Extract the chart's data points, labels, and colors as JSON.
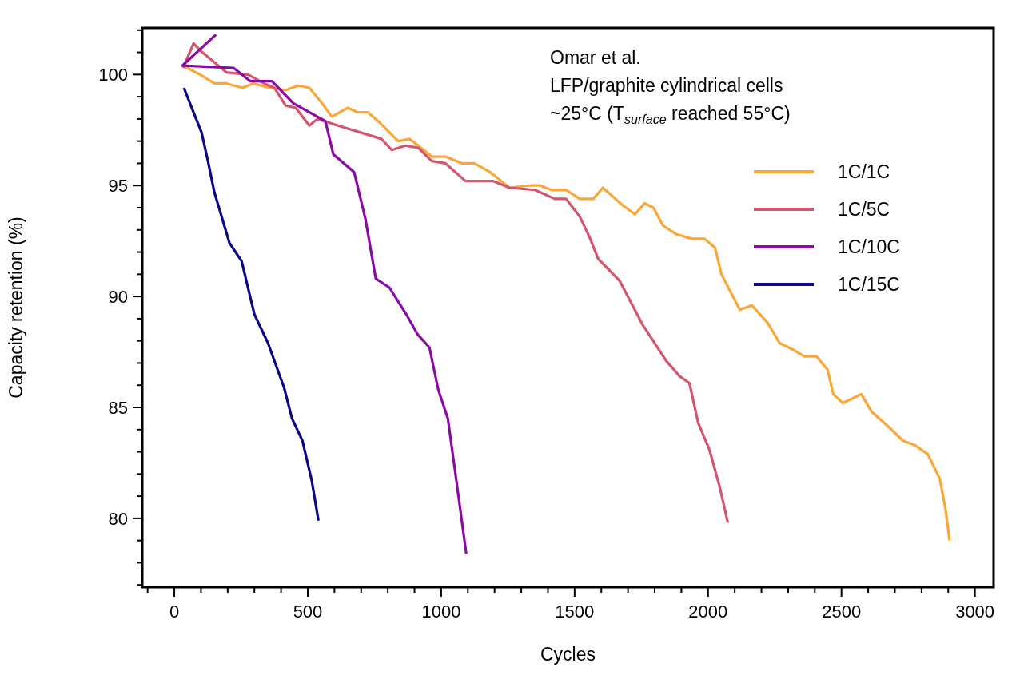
{
  "chart_data": {
    "type": "line",
    "xlabel": "Cycles",
    "ylabel": "Capacity retention (%)",
    "annotations": [
      "Omar et al.",
      "LFP/graphite cylindrical cells",
      "~25°C (T$_{surface}$ reached 55°C)"
    ],
    "xlim": [
      -120,
      3070
    ],
    "ylim": [
      76.9,
      102.1
    ],
    "xticks": [
      {
        "value": -100,
        "label": null
      },
      0,
      {
        "value": 100,
        "label": null
      },
      {
        "value": 200,
        "label": null
      },
      {
        "value": 300,
        "label": null
      },
      {
        "value": 400,
        "label": null
      },
      500,
      {
        "value": 600,
        "label": null
      },
      {
        "value": 700,
        "label": null
      },
      {
        "value": 800,
        "label": null
      },
      {
        "value": 900,
        "label": null
      },
      1000,
      {
        "value": 1100,
        "label": null
      },
      {
        "value": 1200,
        "label": null
      },
      {
        "value": 1300,
        "label": null
      },
      {
        "value": 1400,
        "label": null
      },
      1500,
      {
        "value": 1600,
        "label": null
      },
      {
        "value": 1700,
        "label": null
      },
      {
        "value": 1800,
        "label": null
      },
      {
        "value": 1900,
        "label": null
      },
      2000,
      {
        "value": 2100,
        "label": null
      },
      {
        "value": 2200,
        "label": null
      },
      {
        "value": 2300,
        "label": null
      },
      {
        "value": 2400,
        "label": null
      },
      2500,
      {
        "value": 2600,
        "label": null
      },
      {
        "value": 2700,
        "label": null
      },
      {
        "value": 2800,
        "label": null
      },
      {
        "value": 2900,
        "label": null
      },
      3000
    ],
    "yticks": [
      {
        "value": 77,
        "label": null
      },
      {
        "value": 78,
        "label": null
      },
      {
        "value": 79,
        "label": null
      },
      80,
      {
        "value": 81,
        "label": null
      },
      {
        "value": 82,
        "label": null
      },
      {
        "value": 83,
        "label": null
      },
      {
        "value": 84,
        "label": null
      },
      85,
      {
        "value": 86,
        "label": null
      },
      {
        "value": 87,
        "label": null
      },
      {
        "value": 88,
        "label": null
      },
      {
        "value": 89,
        "label": null
      },
      90,
      {
        "value": 91,
        "label": null
      },
      {
        "value": 92,
        "label": null
      },
      {
        "value": 93,
        "label": null
      },
      {
        "value": 94,
        "label": null
      },
      95,
      {
        "value": 96,
        "label": null
      },
      {
        "value": 97,
        "label": null
      },
      {
        "value": 98,
        "label": null
      },
      {
        "value": 99,
        "label": null
      },
      100,
      {
        "value": 101,
        "label": null
      },
      {
        "value": 102,
        "label": null
      }
    ],
    "grid": false,
    "legend": "top right",
    "marker": "none",
    "line_style": "solid",
    "series": [
      {
        "name": "1C/1C",
        "color": "#fca636",
        "x": [
          33,
          96,
          150,
          195,
          255,
          297,
          357,
          417,
          465,
          506,
          554,
          590,
          650,
          686,
          725,
          764,
          839,
          881,
          914,
          965,
          1016,
          1079,
          1124,
          1184,
          1256,
          1331,
          1370,
          1414,
          1468,
          1519,
          1570,
          1606,
          1681,
          1726,
          1762,
          1795,
          1831,
          1882,
          1939,
          1987,
          2026,
          2050,
          2119,
          2164,
          2224,
          2268,
          2319,
          2361,
          2406,
          2448,
          2469,
          2505,
          2574,
          2613,
          2679,
          2730,
          2775,
          2823,
          2868,
          2890,
          2905
        ],
        "values": [
          100.4,
          100.0,
          99.6,
          99.6,
          99.4,
          99.6,
          99.4,
          99.3,
          99.5,
          99.4,
          98.7,
          98.1,
          98.5,
          98.3,
          98.3,
          97.9,
          97.0,
          97.1,
          96.8,
          96.3,
          96.3,
          96.0,
          96.0,
          95.6,
          94.9,
          95.0,
          95.0,
          94.8,
          94.8,
          94.4,
          94.4,
          94.9,
          94.1,
          93.7,
          94.2,
          94.0,
          93.2,
          92.8,
          92.6,
          92.6,
          92.2,
          91.0,
          89.4,
          89.6,
          88.8,
          87.9,
          87.6,
          87.3,
          87.3,
          86.7,
          85.6,
          85.2,
          85.6,
          84.8,
          84.1,
          83.5,
          83.3,
          82.9,
          81.8,
          80.4,
          79.0
        ]
      },
      {
        "name": "1C/5C",
        "color": "#d5546e",
        "x": [
          33,
          72,
          105,
          195,
          276,
          336,
          375,
          417,
          455,
          506,
          536,
          614,
          776,
          815,
          866,
          914,
          965,
          1016,
          1091,
          1196,
          1256,
          1351,
          1426,
          1468,
          1519,
          1555,
          1588,
          1669,
          1756,
          1843,
          1894,
          1930,
          1963,
          2005,
          2044,
          2074
        ],
        "values": [
          100.3,
          101.4,
          101.0,
          100.1,
          100.0,
          99.6,
          99.4,
          98.6,
          98.5,
          97.7,
          98.0,
          97.7,
          97.1,
          96.6,
          96.8,
          96.7,
          96.1,
          96.0,
          95.2,
          95.2,
          94.9,
          94.8,
          94.4,
          94.4,
          93.6,
          92.7,
          91.7,
          90.7,
          88.7,
          87.1,
          86.4,
          86.1,
          84.3,
          83.1,
          81.4,
          79.8
        ]
      },
      {
        "name": "1C/10C",
        "color": "#8b0aa5",
        "x": [
          156,
          30,
          222,
          285,
          366,
          446,
          536,
          566,
          596,
          674,
          716,
          755,
          806,
          869,
          911,
          956,
          989,
          1025,
          1049,
          1076,
          1094
        ],
        "values": [
          101.8,
          100.4,
          100.3,
          99.7,
          99.7,
          98.7,
          98.1,
          97.9,
          96.4,
          95.6,
          93.5,
          90.8,
          90.4,
          89.2,
          88.3,
          87.7,
          85.8,
          84.5,
          82.4,
          80.0,
          78.4
        ]
      },
      {
        "name": "1C/15C",
        "color": "#0d0887",
        "x": [
          36,
          72,
          102,
          126,
          150,
          207,
          252,
          300,
          351,
          411,
          441,
          480,
          515,
          540
        ],
        "values": [
          99.4,
          98.3,
          97.4,
          96.1,
          94.7,
          92.4,
          91.6,
          89.2,
          87.9,
          85.9,
          84.5,
          83.5,
          81.7,
          79.9
        ]
      }
    ]
  }
}
